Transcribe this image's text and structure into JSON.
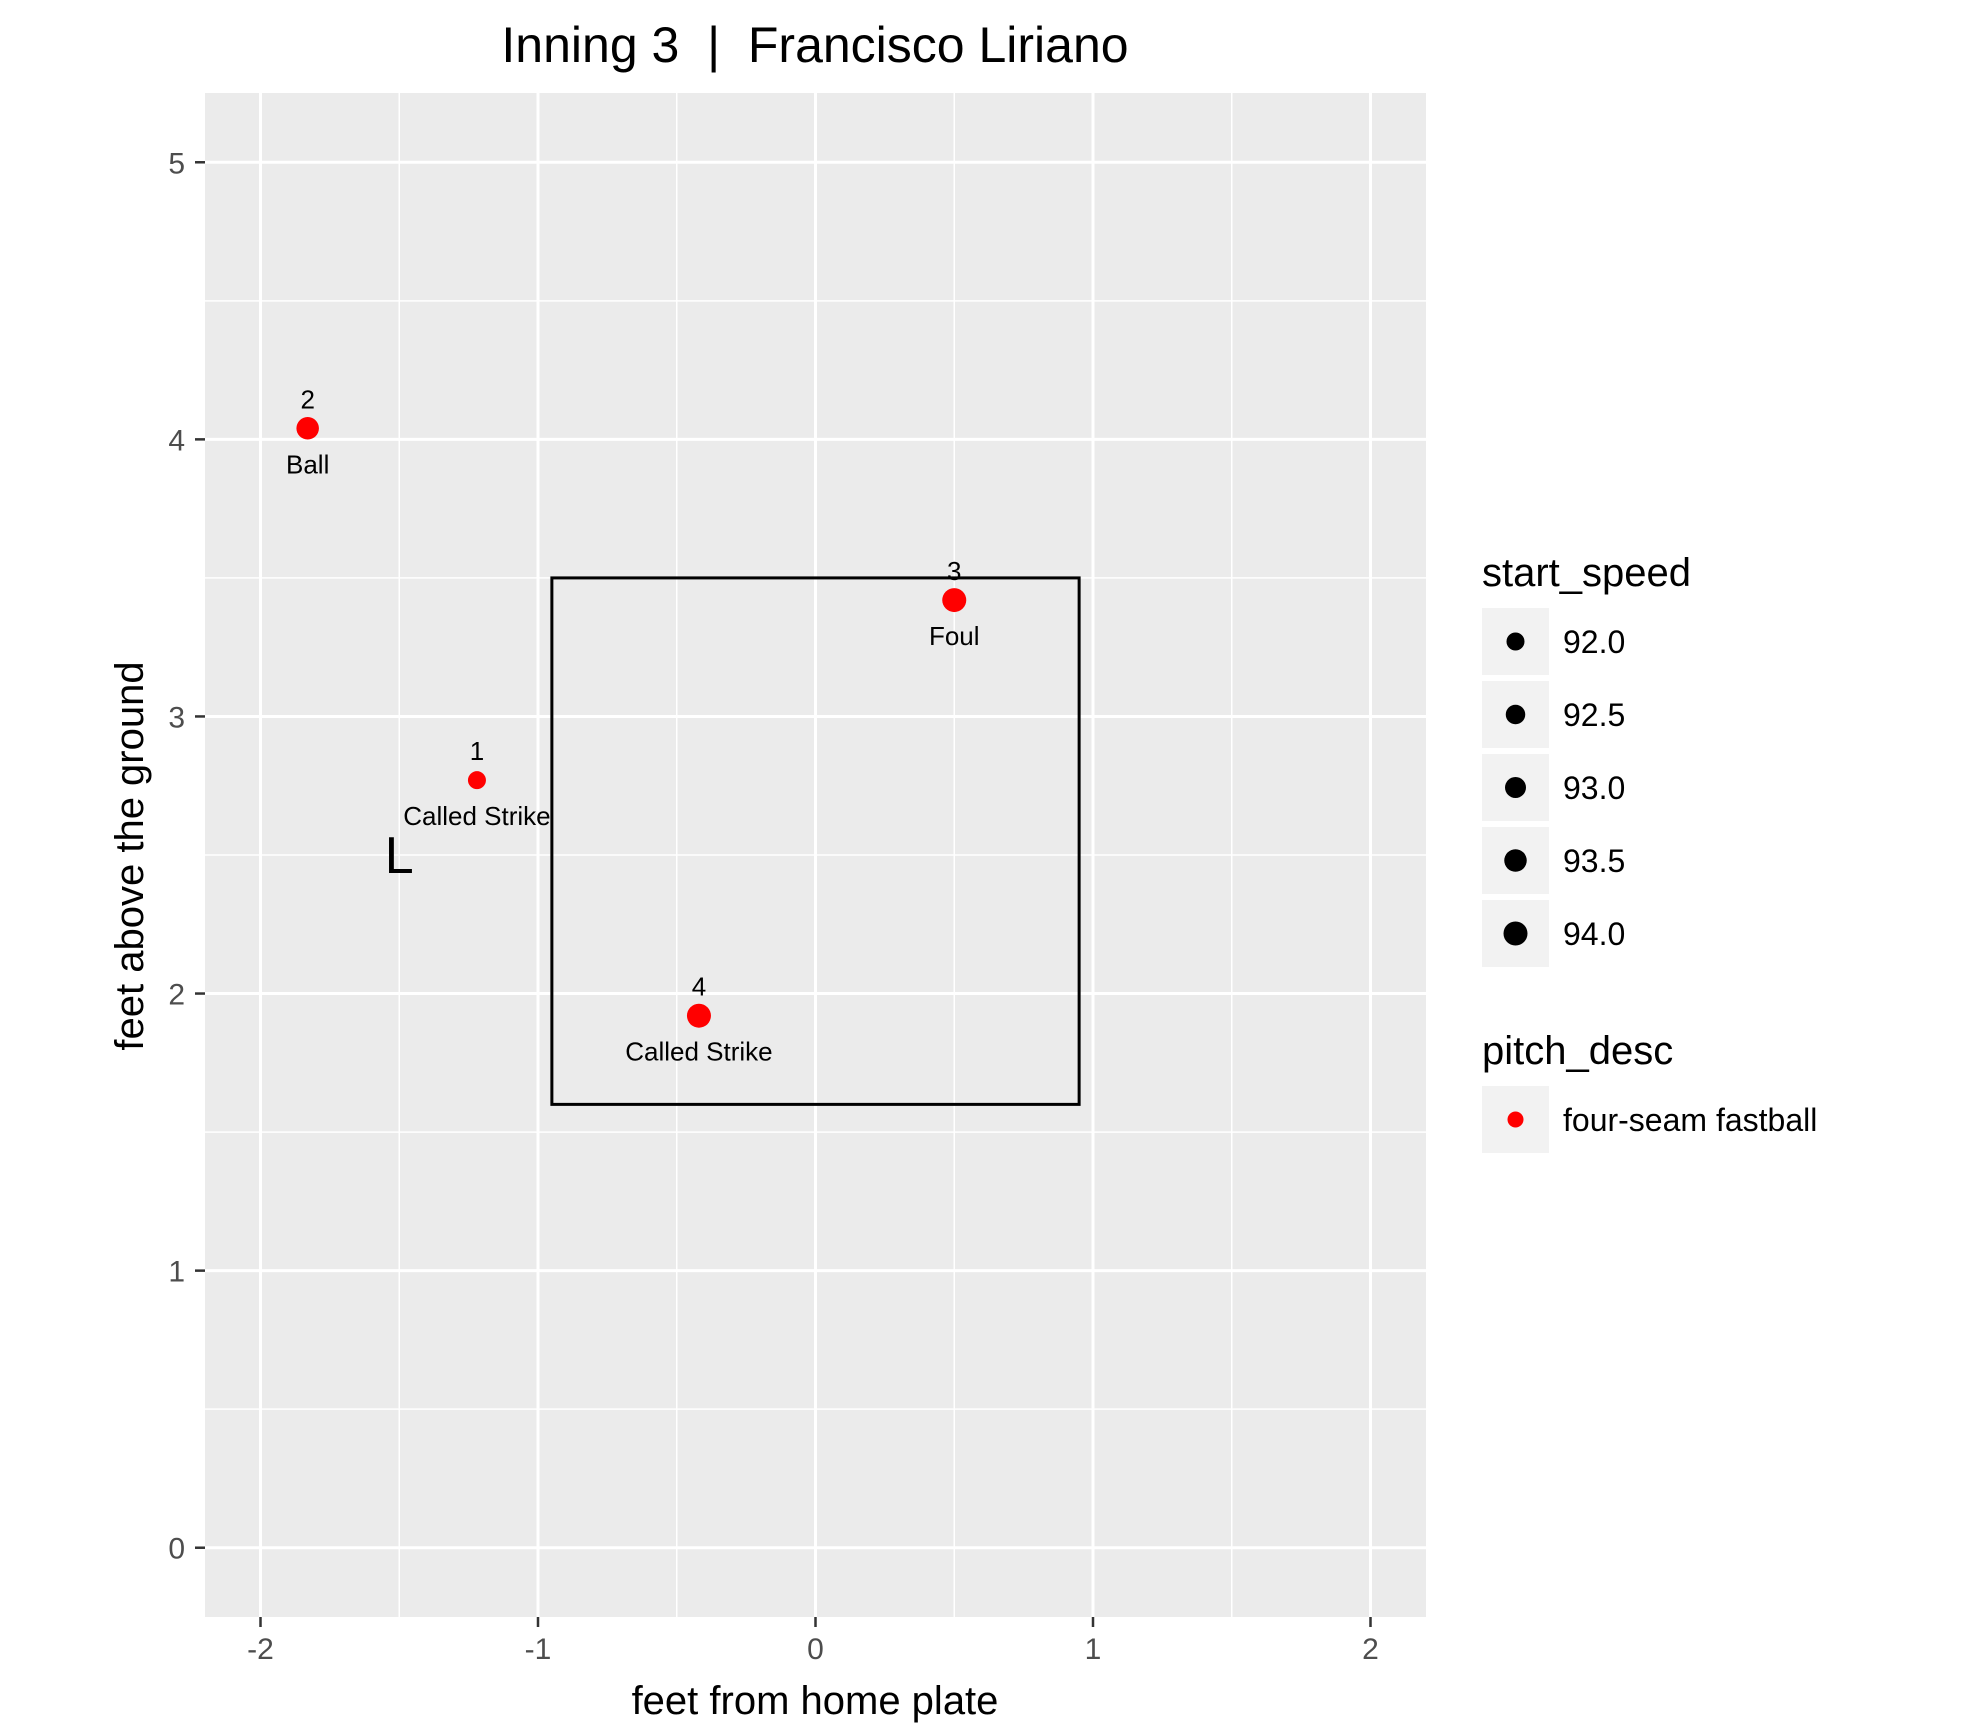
{
  "chart_data": {
    "type": "scatter",
    "title": "Inning 3  |  Francisco Liriano",
    "xlabel": "feet from home plate",
    "ylabel": "feet above the ground",
    "xlim": [
      -2.2,
      2.2
    ],
    "ylim": [
      -0.25,
      5.25
    ],
    "x_ticks": [
      -2,
      -1,
      0,
      1,
      2
    ],
    "x_tick_labels": [
      "-2",
      "-1",
      "0",
      "1",
      "2"
    ],
    "y_ticks": [
      0,
      1,
      2,
      3,
      4,
      5
    ],
    "y_tick_labels": [
      "0",
      "1",
      "2",
      "3",
      "4",
      "5"
    ],
    "grid": true,
    "strike_zone": {
      "x": [
        -0.95,
        0.95
      ],
      "y": [
        1.6,
        3.5
      ]
    },
    "batter_side": {
      "label": "L",
      "x": -1.5,
      "y": 2.5
    },
    "point_color": "#ff0000",
    "points": [
      {
        "x": -1.22,
        "y": 2.77,
        "number": "1",
        "result": "Called Strike",
        "start_speed": 92.0
      },
      {
        "x": -1.83,
        "y": 4.04,
        "number": "2",
        "result": "Ball",
        "start_speed": 93.5
      },
      {
        "x": 0.5,
        "y": 3.42,
        "number": "3",
        "result": "Foul",
        "start_speed": 94.0
      },
      {
        "x": -0.42,
        "y": 1.92,
        "number": "4",
        "result": "Called Strike",
        "start_speed": 94.0
      }
    ],
    "legend_position": "right",
    "legend_size": {
      "title": "start_speed",
      "labels": [
        "92.0",
        "92.5",
        "93.0",
        "93.5",
        "94.0"
      ]
    },
    "legend_color": {
      "title": "pitch_desc",
      "labels": [
        "four-seam fastball"
      ],
      "colors": [
        "#ff0000"
      ]
    }
  }
}
